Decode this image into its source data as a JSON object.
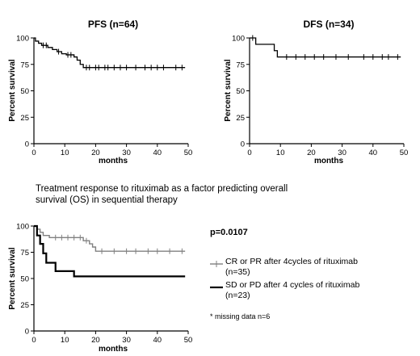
{
  "chart_data": [
    {
      "type": "line",
      "title": "PFS (n=64)",
      "xlabel": "months",
      "ylabel": "Percent survival",
      "xlim": [
        0,
        50
      ],
      "ylim": [
        0,
        100
      ],
      "xticks": [
        "0",
        "10",
        "20",
        "30",
        "40",
        "50"
      ],
      "yticks": [
        "0",
        "25",
        "50",
        "75",
        "100"
      ],
      "series": [
        {
          "step_x": [
            0,
            0.5,
            1.5,
            2.5,
            4.5,
            6,
            7.5,
            9,
            10.5,
            13,
            14,
            15,
            16
          ],
          "step_y": [
            100,
            97,
            95,
            93,
            91,
            89,
            87,
            85,
            84,
            82,
            79,
            75,
            72
          ],
          "end_x": 49,
          "censor_x": [
            3,
            4,
            8,
            11,
            12,
            17,
            18,
            20,
            21,
            23,
            24,
            26,
            28,
            30,
            33,
            36,
            38,
            40,
            42,
            46,
            48
          ],
          "color": "#000000"
        }
      ]
    },
    {
      "type": "line",
      "title": "DFS (n=34)",
      "xlabel": "months",
      "ylabel": "Percent survival",
      "xlim": [
        0,
        50
      ],
      "ylim": [
        0,
        100
      ],
      "xticks": [
        "0",
        "10",
        "20",
        "30",
        "40",
        "50"
      ],
      "yticks": [
        "0",
        "25",
        "50",
        "75",
        "100"
      ],
      "series": [
        {
          "step_x": [
            0,
            2,
            8,
            9
          ],
          "step_y": [
            100,
            94,
            88,
            82
          ],
          "end_x": 49,
          "censor_x": [
            1,
            12,
            15,
            18,
            21,
            24,
            28,
            32,
            37,
            40,
            43,
            45,
            48
          ],
          "color": "#000000"
        }
      ]
    },
    {
      "type": "line",
      "title": "",
      "xlabel": "months",
      "ylabel": "Percent survival",
      "xlim": [
        0,
        50
      ],
      "ylim": [
        0,
        100
      ],
      "xticks": [
        "0",
        "10",
        "20",
        "30",
        "40",
        "50"
      ],
      "yticks": [
        "0",
        "25",
        "50",
        "75",
        "100"
      ],
      "annotation": "p=0.0107",
      "footnote": "* missing data n=6",
      "series": [
        {
          "name": "CR or PR after 4cycles of rituximab (n=35)",
          "step_x": [
            0,
            1,
            2,
            3,
            5,
            16,
            18,
            19,
            20
          ],
          "step_y": [
            100,
            97,
            94,
            91,
            89,
            86,
            83,
            80,
            76
          ],
          "end_x": 49,
          "censor_x": [
            7,
            9,
            11,
            13,
            15,
            17,
            22,
            26,
            30,
            33,
            37,
            40,
            44,
            48
          ],
          "color": "#808080",
          "line_width": 1.4
        },
        {
          "name": "SD or PD after 4 cycles of rituximab (n=23)",
          "step_x": [
            0,
            1,
            2,
            3,
            4,
            7,
            13
          ],
          "step_y": [
            100,
            91,
            83,
            74,
            65,
            57,
            52
          ],
          "end_x": 49,
          "censor_x": [],
          "color": "#000000",
          "line_width": 2.2
        }
      ]
    }
  ],
  "caption": "Treatment response to rituximab as a factor predicting overall survival (OS) in sequential therapy"
}
